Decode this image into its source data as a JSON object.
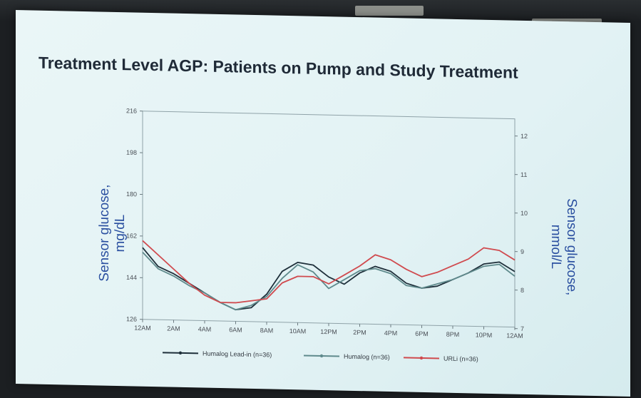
{
  "chart_data": {
    "type": "line",
    "title": "Treatment Level AGP: Patients on Pump and Study Treatment",
    "ylabel_left": [
      "Sensor glucose,",
      "mg/dL"
    ],
    "ylabel_right": [
      "Sensor glucose,",
      "mmol/L"
    ],
    "ylim_left": [
      126,
      216
    ],
    "yticks_left": [
      "126",
      "144",
      "162",
      "180",
      "198",
      "216"
    ],
    "ylim_right": [
      7,
      12
    ],
    "yticks_right": [
      "7",
      "8",
      "9",
      "10",
      "11",
      "12"
    ],
    "x_categories": [
      "12AM",
      "2AM",
      "4AM",
      "6AM",
      "8AM",
      "10AM",
      "12PM",
      "2PM",
      "4PM",
      "6PM",
      "8PM",
      "10PM",
      "12AM"
    ],
    "x_hours": [
      0,
      1,
      2,
      3,
      4,
      5,
      6,
      7,
      8,
      9,
      10,
      11,
      12,
      13,
      14,
      15,
      16,
      17,
      18,
      19,
      20,
      21,
      22,
      23,
      24
    ],
    "series": [
      {
        "name": "Humalog Lead-in (n=36)",
        "color": "#1e2f3a",
        "values": [
          157,
          149,
          146,
          142,
          138,
          134,
          131,
          132,
          138,
          148,
          152,
          151,
          146,
          143,
          148,
          151,
          149,
          144,
          142,
          143,
          146,
          149,
          153,
          154,
          150
        ]
      },
      {
        "name": "Humalog (n=36)",
        "color": "#5f8a8c",
        "values": [
          155,
          148,
          145,
          141,
          138,
          134,
          131,
          133,
          137,
          145,
          151,
          148,
          141,
          145,
          149,
          150,
          148,
          143,
          142,
          144,
          146,
          149,
          152,
          153,
          148
        ]
      },
      {
        "name": "URLi (n=36)",
        "color": "#d04a4e",
        "values": [
          160,
          154,
          148,
          142,
          137,
          134,
          134,
          135,
          136,
          143,
          146,
          146,
          143,
          147,
          151,
          156,
          154,
          150,
          147,
          149,
          152,
          155,
          160,
          159,
          155
        ]
      }
    ],
    "legend_position": "bottom",
    "grid": false
  }
}
